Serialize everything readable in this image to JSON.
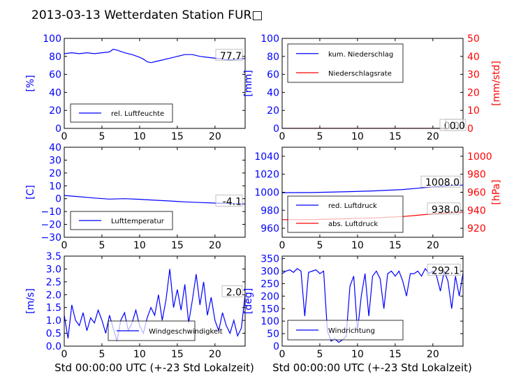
{
  "page": {
    "title": "2013-03-13 Wetterdaten Station FUR□",
    "x_axis_label": "Std 00:00:00 UTC (+-23 Std Lokalzeit)"
  },
  "colors": {
    "left_axis": "#0000ff",
    "right_axis": "#ff0000",
    "series_blue": "#0000ff",
    "series_red": "#ff0000",
    "frame": "#000000"
  },
  "chart_data": [
    {
      "id": "humidity",
      "type": "line",
      "ylabel": "[%]",
      "ylim": [
        0,
        100
      ],
      "yticks": [
        0,
        20,
        40,
        60,
        80,
        100
      ],
      "xlim": [
        0,
        24
      ],
      "xticks": [
        0,
        5,
        10,
        15,
        20
      ],
      "last_value_label": "77.7",
      "legend_location": "lower-left",
      "series": [
        {
          "name": "rel. Luftfeuchte",
          "color": "#0000ff",
          "axis": "left",
          "x": [
            0,
            1,
            2,
            3,
            4,
            5,
            6,
            6.5,
            7,
            8,
            9,
            10,
            10.5,
            11,
            11.5,
            12,
            13,
            14,
            15,
            16,
            17,
            18,
            19,
            20,
            21,
            22,
            23,
            24
          ],
          "y": [
            83,
            84,
            83,
            84,
            83,
            84,
            85,
            88,
            87,
            84,
            82,
            79,
            77,
            74,
            73,
            74,
            76,
            78,
            80,
            82,
            82,
            80,
            79,
            78,
            77,
            76,
            77,
            77.7
          ]
        }
      ]
    },
    {
      "id": "precipitation",
      "type": "line",
      "ylabel": "[mm]",
      "ylim": [
        0,
        100
      ],
      "yticks": [
        0,
        20,
        40,
        60,
        80,
        100
      ],
      "ylabel_right": "[mm/std]",
      "ylim_right": [
        0,
        50
      ],
      "yticks_right": [
        0,
        10,
        20,
        30,
        40,
        50
      ],
      "xlim": [
        0,
        24
      ],
      "xticks": [
        0,
        5,
        10,
        15,
        20
      ],
      "last_value_labels": [
        "0.0",
        "0.0"
      ],
      "legend_location": "upper-left",
      "series": [
        {
          "name": "kum. Niederschlag",
          "color": "#0000ff",
          "axis": "left",
          "x": [
            0,
            24
          ],
          "y": [
            0,
            0
          ]
        },
        {
          "name": "Niederschlagsrate",
          "color": "#ff0000",
          "axis": "right",
          "x": [
            0,
            24
          ],
          "y": [
            0,
            0
          ]
        }
      ]
    },
    {
      "id": "temperature",
      "type": "line",
      "ylabel": "[C]",
      "ylim": [
        -30,
        40
      ],
      "yticks": [
        -30,
        -20,
        -10,
        0,
        10,
        20,
        30,
        40
      ],
      "xlim": [
        0,
        24
      ],
      "xticks": [
        0,
        5,
        10,
        15,
        20
      ],
      "last_value_label": "-4.1",
      "legend_location": "lower-left",
      "series": [
        {
          "name": "Lufttemperatur",
          "color": "#0000ff",
          "axis": "left",
          "x": [
            0,
            2,
            4,
            6,
            8,
            10,
            12,
            14,
            16,
            18,
            20,
            22,
            24
          ],
          "y": [
            2.5,
            1.5,
            0.5,
            -0.3,
            0,
            -0.5,
            -1.2,
            -1.8,
            -2.5,
            -3.0,
            -3.4,
            -3.8,
            -4.1
          ]
        }
      ]
    },
    {
      "id": "pressure",
      "type": "line",
      "ylabel_right": "[hPa]",
      "ylim": [
        950,
        1050
      ],
      "yticks": [
        960,
        980,
        1000,
        1020,
        1040
      ],
      "ylim_right": [
        910,
        1010
      ],
      "yticks_right": [
        920,
        940,
        960,
        980,
        1000
      ],
      "xlim": [
        0,
        24
      ],
      "xticks": [
        0,
        5,
        10,
        15,
        20
      ],
      "last_value_labels": [
        "1008.0",
        "938.0"
      ],
      "legend_location": "lower-left",
      "series": [
        {
          "name": "red. Luftdruck",
          "color": "#0000ff",
          "axis": "left",
          "x": [
            0,
            4,
            8,
            12,
            16,
            18,
            20,
            22,
            24
          ],
          "y": [
            999.5,
            999.7,
            1000.5,
            1001.5,
            1003,
            1004.5,
            1006,
            1007.2,
            1008
          ]
        },
        {
          "name": "abs. Luftdruck",
          "color": "#ff0000",
          "axis": "right",
          "x": [
            0,
            4,
            8,
            12,
            16,
            18,
            20,
            22,
            24
          ],
          "y": [
            929.5,
            929.7,
            930.5,
            931.5,
            933,
            934.5,
            936,
            937.2,
            938
          ]
        }
      ]
    },
    {
      "id": "windspeed",
      "type": "line",
      "ylabel": "[m/s]",
      "ylim": [
        0,
        3.5
      ],
      "yticks": [
        0.0,
        0.5,
        1.0,
        1.5,
        2.0,
        2.5,
        3.0,
        3.5
      ],
      "xlim": [
        0,
        24
      ],
      "xticks": [
        0,
        5,
        10,
        15,
        20
      ],
      "last_value_label": "2.0",
      "legend_location": "lower-center",
      "series": [
        {
          "name": "Windgeschwindigkeit",
          "color": "#0000ff",
          "axis": "left",
          "x": [
            0,
            0.5,
            1,
            1.5,
            2,
            2.5,
            3,
            3.5,
            4,
            4.5,
            5,
            5.5,
            6,
            6.5,
            7,
            7.5,
            8,
            8.5,
            9,
            9.5,
            10,
            10.5,
            11,
            11.5,
            12,
            12.5,
            13,
            13.5,
            14,
            14.5,
            15,
            15.5,
            16,
            16.5,
            17,
            17.5,
            18,
            18.5,
            19,
            19.5,
            20,
            20.5,
            21,
            21.5,
            22,
            22.5,
            23,
            23.5,
            24
          ],
          "y": [
            1.2,
            0.3,
            1.6,
            1.0,
            0.8,
            1.3,
            0.6,
            1.1,
            0.9,
            1.4,
            1.0,
            0.5,
            1.2,
            0.7,
            0.2,
            1.0,
            1.3,
            0.6,
            0.9,
            1.4,
            0.8,
            0.5,
            1.1,
            1.5,
            1.2,
            2.0,
            1.0,
            1.8,
            3.0,
            1.5,
            2.2,
            1.4,
            2.4,
            0.9,
            1.8,
            2.8,
            1.6,
            2.5,
            1.2,
            1.9,
            1.0,
            0.6,
            1.3,
            0.8,
            0.5,
            1.0,
            0.4,
            0.7,
            2.0
          ]
        }
      ]
    },
    {
      "id": "winddirection",
      "type": "line",
      "ylabel": "[deg]",
      "ylim": [
        0,
        360
      ],
      "yticks": [
        0,
        50,
        100,
        150,
        200,
        250,
        300,
        350
      ],
      "xlim": [
        0,
        24
      ],
      "xticks": [
        0,
        5,
        10,
        15,
        20
      ],
      "last_value_label": "292.1",
      "legend_location": "lower-left",
      "series": [
        {
          "name": "Windrichtung",
          "color": "#0000ff",
          "axis": "left",
          "x": [
            0,
            0.5,
            1,
            1.5,
            2,
            2.5,
            3,
            3.5,
            4,
            4.5,
            5,
            5.5,
            6,
            6.5,
            7,
            7.5,
            8,
            8.5,
            9,
            9.5,
            10,
            10.5,
            11,
            11.5,
            12,
            12.5,
            13,
            13.5,
            14,
            14.5,
            15,
            15.5,
            16,
            16.5,
            17,
            17.5,
            18,
            18.5,
            19,
            19.5,
            20,
            20.5,
            21,
            21.5,
            22,
            22.5,
            23,
            23.5,
            24
          ],
          "y": [
            290,
            300,
            305,
            295,
            310,
            300,
            120,
            295,
            300,
            305,
            290,
            300,
            60,
            20,
            30,
            15,
            25,
            40,
            240,
            280,
            60,
            200,
            290,
            120,
            280,
            300,
            270,
            150,
            290,
            300,
            280,
            300,
            260,
            200,
            290,
            290,
            300,
            280,
            310,
            290,
            300,
            280,
            220,
            300,
            260,
            150,
            280,
            200,
            292.1
          ]
        }
      ]
    }
  ]
}
